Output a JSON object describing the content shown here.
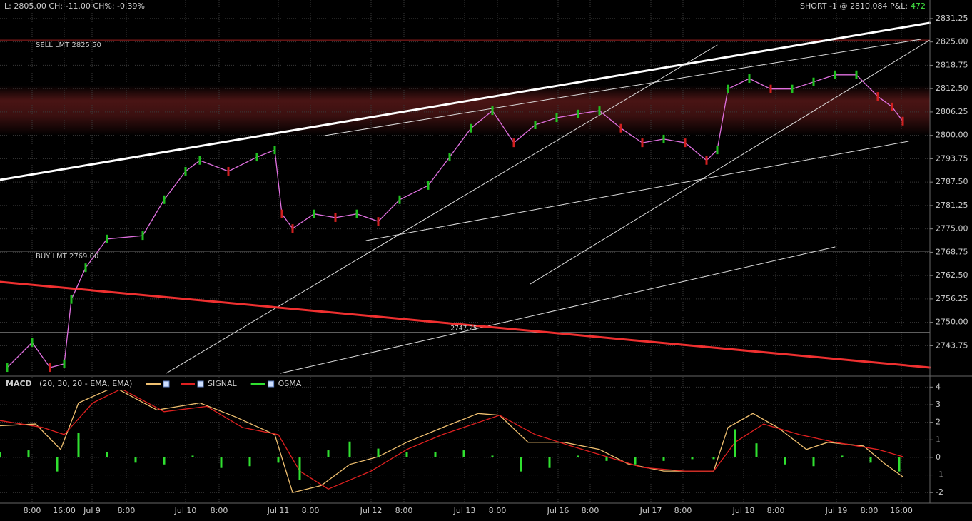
{
  "header": {
    "quote": "L: 2805.00 CH: -11.00 CH%: -0.39%",
    "position": "SHORT -1 @ 2810.084 P&L:",
    "pnl": "472"
  },
  "chart_data": [
    {
      "type": "line",
      "xlim": [
        0,
        260.6
      ],
      "ylim": [
        2736,
        2836.2
      ],
      "xticks": [
        {
          "value": 9,
          "label": "8:00"
        },
        {
          "value": 18,
          "label": "16:00"
        },
        {
          "value": 25.8,
          "label": "Jul 9"
        },
        {
          "value": 35.4,
          "label": "8:00"
        },
        {
          "value": 52,
          "label": "Jul 10"
        },
        {
          "value": 61.4,
          "label": "8:00"
        },
        {
          "value": 78,
          "label": "Jul 11"
        },
        {
          "value": 87,
          "label": "8:00"
        },
        {
          "value": 104,
          "label": "Jul 12"
        },
        {
          "value": 113.2,
          "label": "8:00"
        },
        {
          "value": 130.2,
          "label": "Jul 13"
        },
        {
          "value": 139.4,
          "label": "8:00"
        },
        {
          "value": 156.4,
          "label": "Jul 16"
        },
        {
          "value": 165.4,
          "label": "8:00"
        },
        {
          "value": 182.4,
          "label": "Jul 17"
        },
        {
          "value": 191.4,
          "label": "8:00"
        },
        {
          "value": 208.4,
          "label": "Jul 18"
        },
        {
          "value": 217.4,
          "label": "8:00"
        },
        {
          "value": 234.4,
          "label": "Jul 19"
        },
        {
          "value": 243.6,
          "label": "8:00"
        },
        {
          "value": 252.6,
          "label": "16:00"
        }
      ],
      "yticks": [
        2831.25,
        {
          "value": 2825,
          "label": "2825.00"
        },
        2818.75,
        {
          "value": 2812.5,
          "label": "2812.50"
        },
        2806.25,
        {
          "value": 2800,
          "label": "2800.00"
        },
        2793.75,
        {
          "value": 2787.5,
          "label": "2787.50"
        },
        2781.25,
        {
          "value": 2775,
          "label": "2775.00"
        },
        2768.75,
        {
          "value": 2762.5,
          "label": "2762.50"
        },
        2756.25,
        {
          "value": 2750,
          "label": "2750.00"
        },
        2743.75
      ],
      "grid": true,
      "orders": [
        {
          "value": 2825.5,
          "label": "SELL LMT 2825.50",
          "color": "#a02020"
        },
        {
          "value": 2769,
          "label": "BUY LMT 2769.00",
          "color": "#555555"
        },
        {
          "value": 2747.25,
          "color": "#bbbbbb"
        }
      ],
      "series": [
        {
          "color": "#e070e0",
          "x": [
            2,
            9,
            14,
            18,
            20,
            24,
            30,
            40,
            46,
            52,
            56,
            64,
            72,
            77,
            79,
            82,
            88,
            94,
            100,
            106,
            112,
            120,
            126,
            132,
            138,
            144,
            150,
            156,
            162,
            168,
            174,
            180,
            186,
            192,
            198,
            201,
            204,
            210,
            216,
            222,
            228,
            234,
            240,
            246,
            250,
            253
          ],
          "values": [
            2737.9,
            2744.6,
            2737.9,
            2738.9,
            2756.1,
            2764.6,
            2772.3,
            2773.2,
            2782.8,
            2790.4,
            2793.3,
            2790.4,
            2794.2,
            2796.1,
            2779.0,
            2775.1,
            2779.0,
            2778.0,
            2779.0,
            2777.0,
            2782.8,
            2786.6,
            2794.2,
            2801.9,
            2806.6,
            2798.0,
            2802.8,
            2804.7,
            2805.7,
            2806.6,
            2801.9,
            2798.0,
            2799.0,
            2798.0,
            2793.3,
            2796.1,
            2812.4,
            2815.2,
            2812.4,
            2812.4,
            2814.3,
            2816.2,
            2816.2,
            2810.4,
            2807.6,
            2803.8
          ]
        }
      ]
    },
    {
      "type": "line",
      "indicator": "MACD",
      "params": "(20, 30, 20 - EMA, EMA)",
      "xlim": [
        0,
        260.6
      ],
      "ylim": [
        -2.6,
        4.5
      ],
      "yticks": [
        4,
        3,
        2,
        1,
        0,
        -1,
        -2
      ],
      "series": [
        {
          "color": "#f0c070",
          "kind": "line",
          "x": [
            0,
            10,
            17,
            22,
            32,
            44,
            56,
            66,
            77,
            82,
            90,
            98,
            106,
            114,
            124,
            134,
            140,
            148,
            158,
            168,
            176,
            186,
            200,
            204,
            211,
            218,
            226,
            232,
            242,
            248,
            253
          ],
          "values": [
            1.8,
            1.9,
            0.45,
            3.1,
            4.0,
            2.7,
            3.1,
            2.3,
            1.3,
            -2.0,
            -1.6,
            -0.4,
            0.04,
            0.86,
            1.7,
            2.5,
            2.4,
            0.86,
            0.86,
            0.45,
            -0.37,
            -0.78,
            -0.78,
            1.7,
            2.5,
            1.7,
            0.45,
            0.86,
            0.65,
            -0.37,
            -1.1
          ]
        },
        {
          "name": "SIGNAL",
          "color": "#e02020",
          "kind": "line",
          "x": [
            0,
            12,
            18,
            26,
            34,
            46,
            58,
            68,
            78,
            84,
            92,
            104,
            114,
            124,
            140,
            150,
            160,
            170,
            180,
            192,
            200,
            206,
            214,
            224,
            234,
            246,
            253
          ],
          "values": [
            2.1,
            1.7,
            1.3,
            3.1,
            3.9,
            2.6,
            2.9,
            1.7,
            1.3,
            -0.78,
            -1.8,
            -0.78,
            0.45,
            1.3,
            2.4,
            1.3,
            0.65,
            0.04,
            -0.57,
            -0.78,
            -0.78,
            0.86,
            1.9,
            1.3,
            0.86,
            0.45,
            0.04
          ]
        },
        {
          "name": "OSMA",
          "color": "#30e030",
          "kind": "bar",
          "x": [
            0,
            8,
            16,
            22,
            30,
            38,
            46,
            54,
            62,
            70,
            78,
            84,
            92,
            98,
            106,
            114,
            122,
            130,
            138,
            146,
            154,
            162,
            170,
            178,
            186,
            194,
            200,
            206,
            212,
            220,
            228,
            236,
            244,
            252
          ],
          "values": [
            0.3,
            0.4,
            -0.8,
            1.4,
            0.3,
            -0.3,
            -0.4,
            0.1,
            -0.6,
            -0.5,
            -0.3,
            -1.3,
            0.4,
            0.9,
            0.5,
            0.3,
            0.3,
            0.4,
            0.1,
            -0.8,
            -0.6,
            0.1,
            -0.2,
            -0.4,
            -0.2,
            -0.1,
            -0.1,
            1.6,
            0.8,
            -0.4,
            -0.5,
            0.1,
            -0.3,
            -0.8
          ]
        }
      ]
    }
  ]
}
